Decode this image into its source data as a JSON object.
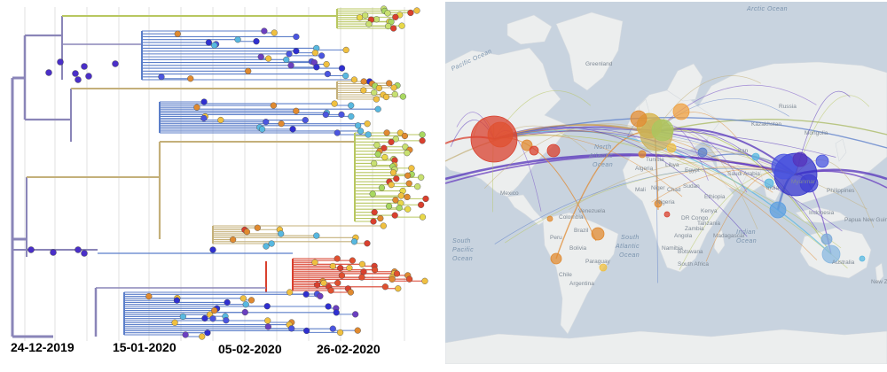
{
  "tree": {
    "date_labels": [
      "24-12-2019",
      "15-01-2020",
      "05-02-2020",
      "26-02-2020"
    ]
  },
  "map": {
    "oceans": [
      "Arctic Ocean",
      "Pacific Ocean",
      "North",
      "Atlantic",
      "Ocean",
      "South",
      "Atlantic",
      "Ocean",
      "South",
      "Pacific",
      "Ocean",
      "Indian",
      "Ocean"
    ],
    "countries": [
      "Greenland",
      "Russia",
      "Mongolia",
      "Kazakhstan",
      "Tunisia",
      "Libya",
      "Algeria",
      "Egypt",
      "Saudi Arabia",
      "Sudan",
      "Chad",
      "Niger",
      "Mali",
      "Nigeria",
      "Ethiopia",
      "Kenya",
      "Tanzania",
      "DR Congo",
      "Angola",
      "Namibia",
      "Botswana",
      "Madagascar",
      "South Africa",
      "Zambia",
      "Peru",
      "Brazil",
      "Bolivia",
      "Paraguay",
      "Chile",
      "Argentina",
      "Colombia",
      "Venezuela",
      "Mexico",
      "Iran",
      "India",
      "Australia",
      "Indonesia",
      "Philippines",
      "Papua New Guinea",
      "Myanmar",
      "New Zealand"
    ]
  },
  "colors": {
    "tree_trunk": "#8a85b8",
    "clade_green": "#b8c760",
    "clade_tan": "#c4b07a",
    "clade_blue": "#5b7ec9",
    "clade_red": "#d9402e",
    "land": "#eceeee",
    "ocean": "#c8d3df"
  }
}
